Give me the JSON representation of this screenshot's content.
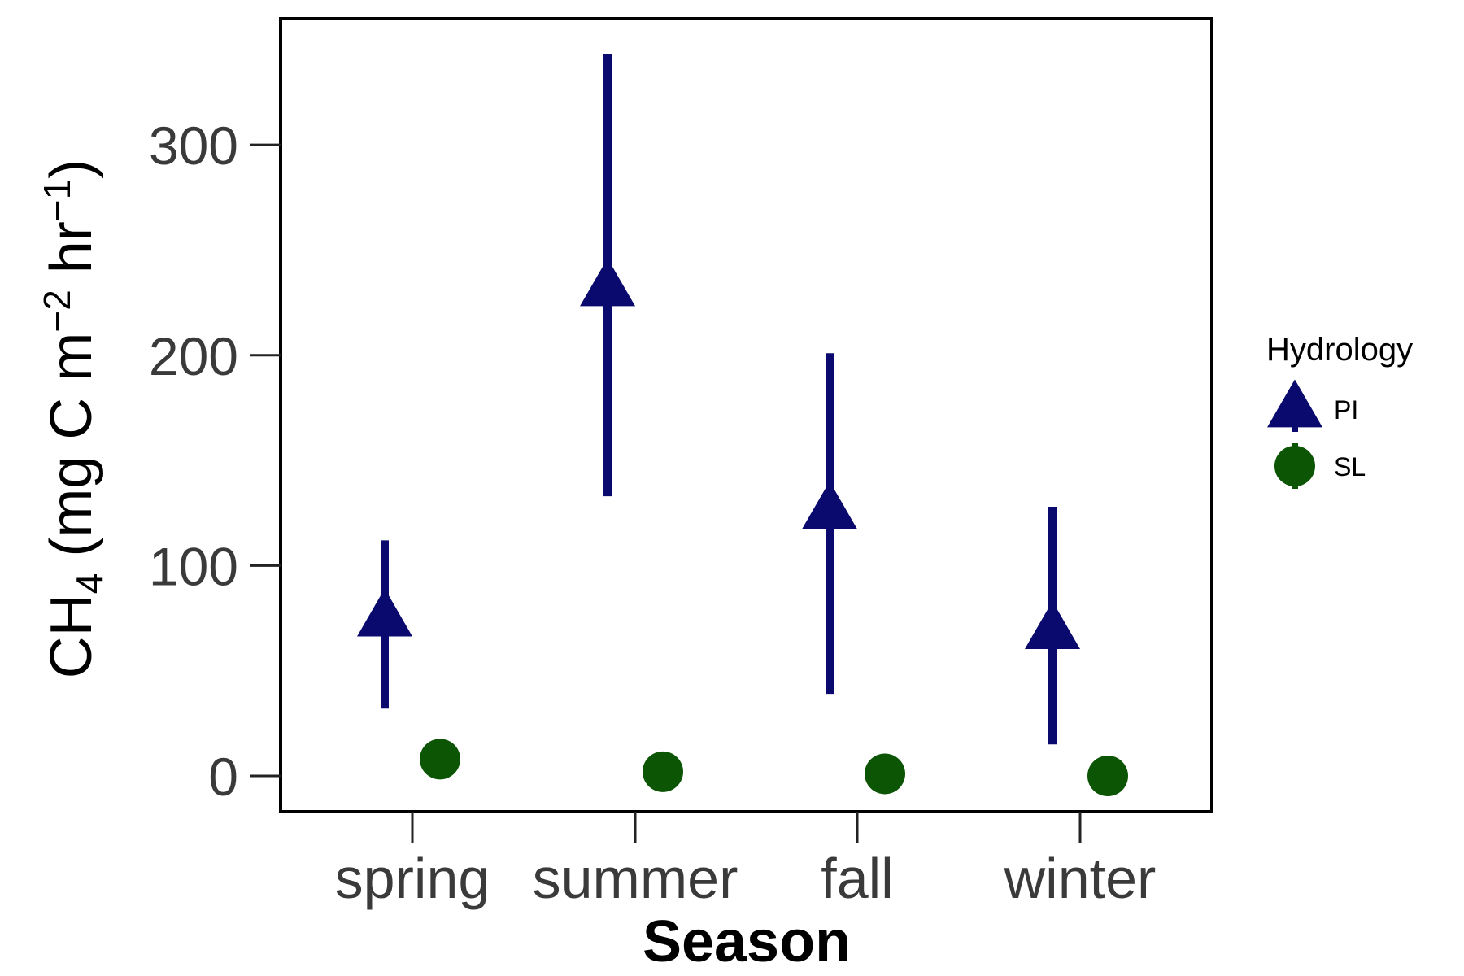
{
  "chart_data": {
    "type": "scatter",
    "title": "",
    "xlabel": "Season",
    "ylabel": {
      "base": "CH",
      "sub": "4",
      "unit_open": " (mg C m",
      "exp1": "−2",
      "unit_mid": " hr",
      "exp2": "−1",
      "unit_close": ")"
    },
    "categories": [
      "spring",
      "summer",
      "fall",
      "winter"
    ],
    "ylim": [
      -17,
      360
    ],
    "yticks": [
      0,
      100,
      200,
      300
    ],
    "ytick_labels": [
      "0",
      "100",
      "200",
      "300"
    ],
    "grid": false,
    "legend": {
      "title": "Hydrology",
      "placement": "right"
    },
    "series": [
      {
        "name": "PI",
        "marker": "triangle",
        "color": "#0a0a6e",
        "values": [
          75,
          232,
          126,
          69
        ],
        "lower": [
          32,
          133,
          39,
          15
        ],
        "upper": [
          112,
          343,
          201,
          128
        ]
      },
      {
        "name": "SL",
        "marker": "circle",
        "color": "#0b5504",
        "values": [
          8,
          2,
          1,
          0
        ],
        "lower": [
          8,
          2,
          1,
          0
        ],
        "upper": [
          8,
          2,
          1,
          0
        ]
      }
    ]
  }
}
